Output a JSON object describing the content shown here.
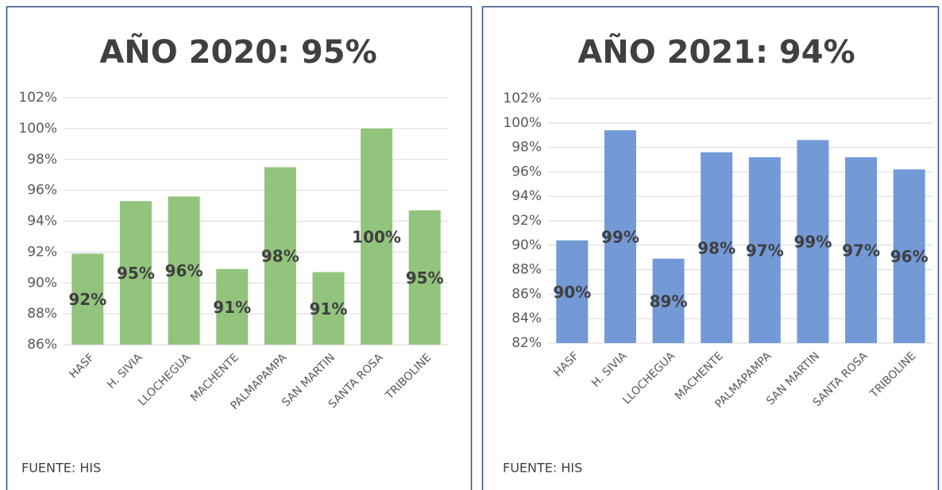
{
  "chart_data": [
    {
      "type": "bar",
      "title": "AÑO 2020: 95%",
      "footnote": "FUENTE: HIS",
      "color": "#93c47d",
      "grid": true,
      "categories": [
        "HASF",
        "H. SIVIA",
        "LLOCHEGUA",
        "MACHENTE",
        "PALMAPAMPA",
        "SAN MARTIN",
        "SANTA ROSA",
        "TRIBOLINE"
      ],
      "values": [
        91.9,
        95.3,
        95.6,
        90.9,
        97.5,
        90.7,
        100,
        94.7
      ],
      "value_labels": [
        "92%",
        "95%",
        "96%",
        "91%",
        "98%",
        "91%",
        "100%",
        "95%"
      ],
      "ylim": [
        86,
        102
      ],
      "yticks": [
        {
          "value": 86,
          "label": "86%"
        },
        {
          "value": 88,
          "label": "88%"
        },
        {
          "value": 90,
          "label": "90%"
        },
        {
          "value": 92,
          "label": "92%"
        },
        {
          "value": 94,
          "label": "94%"
        },
        {
          "value": 96,
          "label": "96%"
        },
        {
          "value": 98,
          "label": "98%"
        },
        {
          "value": 100,
          "label": "100%"
        },
        {
          "value": 102,
          "label": "102%"
        }
      ]
    },
    {
      "type": "bar",
      "title": "AÑO 2021: 94%",
      "footnote": "FUENTE: HIS",
      "color": "#7399d6",
      "grid": true,
      "categories": [
        "HASF",
        "H. SIVIA",
        "LLOCHEGUA",
        "MACHENTE",
        "PALMAPAMPA",
        "SAN MARTIN",
        "SANTA ROSA",
        "TRIBOLINE"
      ],
      "values": [
        90.4,
        99.4,
        88.9,
        97.6,
        97.2,
        98.6,
        97.2,
        96.2
      ],
      "value_labels": [
        "90%",
        "99%",
        "89%",
        "98%",
        "97%",
        "99%",
        "97%",
        "96%"
      ],
      "ylim": [
        82,
        102
      ],
      "yticks": [
        {
          "value": 82,
          "label": "82%"
        },
        {
          "value": 84,
          "label": "84%"
        },
        {
          "value": 86,
          "label": "86%"
        },
        {
          "value": 88,
          "label": "88%"
        },
        {
          "value": 90,
          "label": "90%"
        },
        {
          "value": 92,
          "label": "92%"
        },
        {
          "value": 94,
          "label": "94%"
        },
        {
          "value": 96,
          "label": "96%"
        },
        {
          "value": 98,
          "label": "98%"
        },
        {
          "value": 100,
          "label": "100%"
        },
        {
          "value": 102,
          "label": "102%"
        }
      ]
    }
  ]
}
